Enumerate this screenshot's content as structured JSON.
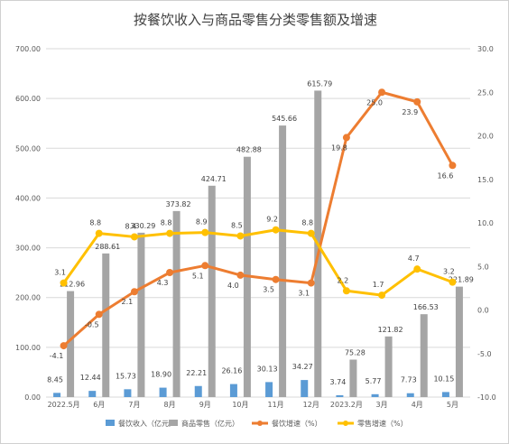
{
  "chart_data": {
    "type": "bar+line",
    "title": "按餐饮收入与商品零售分类零售额及增速",
    "categories": [
      "2022.5月",
      "6月",
      "7月",
      "8月",
      "9月",
      "10月",
      "11月",
      "12月",
      "2023.2月",
      "3月",
      "4月",
      "5月"
    ],
    "left_axis": {
      "min": 0,
      "max": 700,
      "step": 100,
      "decimals": 2
    },
    "right_axis": {
      "min": -10,
      "max": 30,
      "step": 5,
      "decimals": 1
    },
    "series": [
      {
        "name": "餐饮收入（亿元）",
        "kind": "bar",
        "axis": "left",
        "color": "#5b9bd5",
        "values": [
          8.45,
          12.44,
          15.73,
          18.9,
          22.21,
          26.16,
          30.13,
          34.27,
          3.74,
          5.77,
          7.73,
          10.15
        ],
        "labels": [
          "8.45",
          "12.44",
          "15.73",
          "18.90",
          "22.21",
          "26.16",
          "30.13",
          "34.27",
          "3.74",
          "5.77",
          "7.73",
          "10.15"
        ]
      },
      {
        "name": "商品零售（亿元）",
        "kind": "bar",
        "axis": "left",
        "color": "#a5a5a5",
        "values": [
          212.96,
          288.61,
          330.29,
          373.82,
          424.71,
          482.88,
          545.66,
          615.79,
          75.28,
          121.82,
          166.53,
          221.89
        ],
        "labels": [
          "212.96",
          "288.61",
          "330.29",
          "373.82",
          "424.71",
          "482.88",
          "545.66",
          "615.79",
          "75.28",
          "121.82",
          "166.53",
          "221.89"
        ]
      },
      {
        "name": "餐饮增速（%）",
        "kind": "line",
        "axis": "right",
        "color": "#ed7d31",
        "values": [
          -4.1,
          -0.5,
          2.1,
          4.3,
          5.1,
          4.0,
          3.5,
          3.1,
          19.8,
          25.0,
          23.9,
          16.6
        ],
        "labels": [
          "-4.1",
          "-0.5",
          "2.1",
          "4.3",
          "5.1",
          "4.0",
          "3.5",
          "3.1",
          "19.8",
          "25.0",
          "23.9",
          "16.6"
        ]
      },
      {
        "name": "零售增速（%）",
        "kind": "line",
        "axis": "right",
        "color": "#ffc000",
        "values": [
          3.1,
          8.8,
          8.4,
          8.8,
          8.9,
          8.5,
          9.2,
          8.8,
          2.2,
          1.7,
          4.7,
          3.2
        ],
        "labels": [
          "3.1",
          "8.8",
          "8.4",
          "8.8",
          "8.9",
          "8.5",
          "9.2",
          "8.8",
          "2.2",
          "1.7",
          "4.7",
          "3.2"
        ]
      }
    ],
    "grid": true,
    "legend_position": "bottom"
  }
}
